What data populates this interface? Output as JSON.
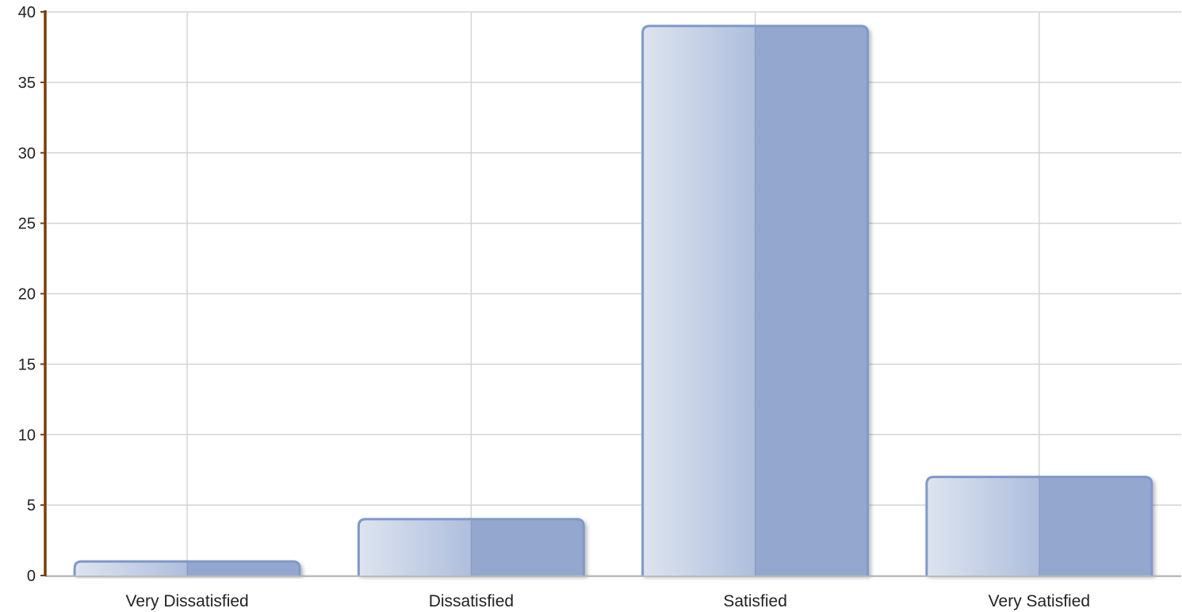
{
  "chart_data": {
    "type": "bar",
    "title": "",
    "xlabel": "",
    "ylabel": "",
    "categories": [
      "Very Dissatisfied",
      "Dissatisfied",
      "Satisfied",
      "Very Satisfied"
    ],
    "values": [
      1,
      4,
      39,
      7
    ],
    "ylim": [
      0,
      40
    ],
    "yticks": [
      0,
      5,
      10,
      15,
      20,
      25,
      30,
      35,
      40
    ],
    "grid": true,
    "legend": "none",
    "colors": {
      "bar_fill_dark": "#94a8cf",
      "bar_fill_light": "#dde4ef",
      "bar_stroke": "#8099c9",
      "grid": "#d4d4d4",
      "y_axis": "#7a3f0a",
      "x_axis": "#bbbbbb",
      "text": "#222222"
    }
  }
}
